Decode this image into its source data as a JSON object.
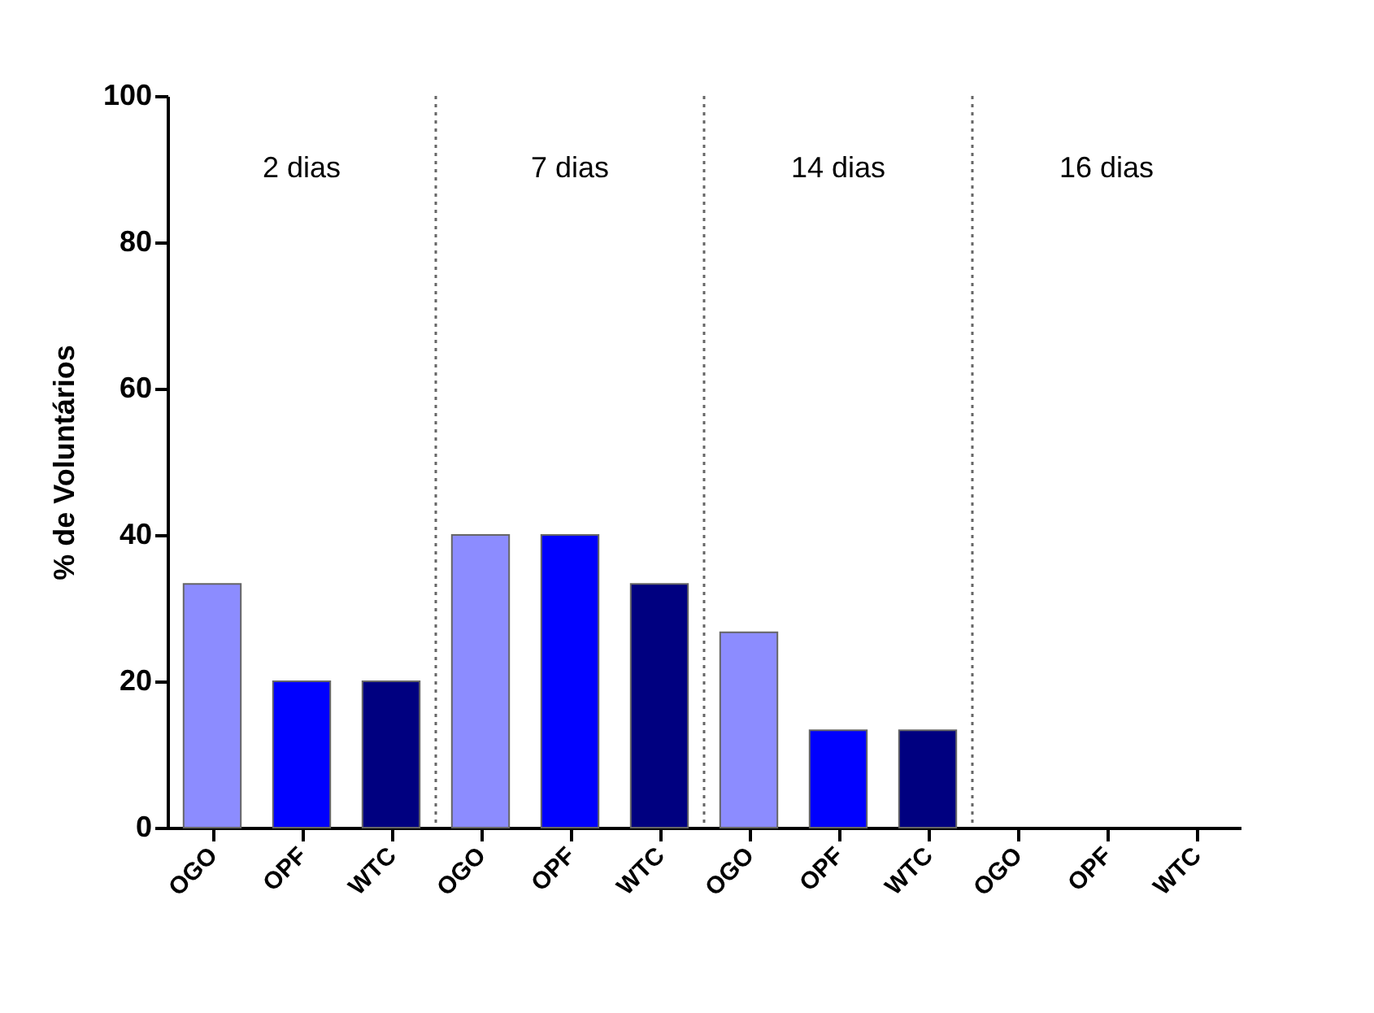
{
  "chart_data": {
    "type": "bar",
    "categories": [
      "OGO",
      "OPF",
      "WTC",
      "OGO",
      "OPF",
      "WTC",
      "OGO",
      "OPF",
      "WTC",
      "OGO",
      "OPF",
      "WTC"
    ],
    "values": [
      33.3,
      20,
      20,
      40,
      40,
      33.3,
      26.7,
      13.3,
      13.3,
      0,
      0,
      0
    ],
    "colors": [
      "#8c8cff",
      "#0000ff",
      "#000080",
      "#8c8cff",
      "#0000ff",
      "#000080",
      "#8c8cff",
      "#0000ff",
      "#000080",
      "#8c8cff",
      "#0000ff",
      "#000080"
    ],
    "ylabel": "% de Voluntários",
    "ylim": [
      0,
      100
    ],
    "yticks": [
      0,
      20,
      40,
      60,
      80,
      100
    ],
    "annotations": [
      "2 dias",
      "7 dias",
      "14 dias",
      "16 dias"
    ],
    "grid": false,
    "legend": false
  }
}
